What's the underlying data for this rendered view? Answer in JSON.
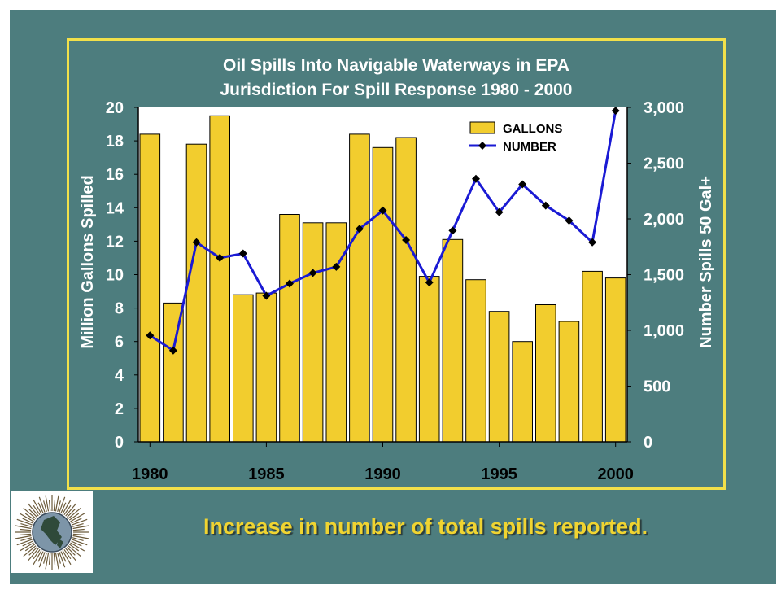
{
  "chart_data": {
    "type": "bar+line",
    "title_line1": "Oil Spills Into Navigable Waterways in EPA",
    "title_line2": "Jurisdiction For Spill Response 1980 - 2000",
    "ylabel_left": "Million Gallons Spilled",
    "ylabel_right": "Number Spills 50 Gal+",
    "x_ticks": [
      "1980",
      "1985",
      "1990",
      "1995",
      "2000"
    ],
    "y_left_ticks": [
      "0",
      "2",
      "4",
      "6",
      "8",
      "10",
      "12",
      "14",
      "16",
      "18",
      "20"
    ],
    "y_right_ticks": [
      "0",
      "500",
      "1,000",
      "1,500",
      "2,000",
      "2,500",
      "3,000"
    ],
    "ylim_left": [
      0,
      20
    ],
    "ylim_right": [
      0,
      3000
    ],
    "legend_position": "top-right",
    "years": [
      1980,
      1981,
      1982,
      1983,
      1984,
      1985,
      1986,
      1987,
      1988,
      1989,
      1990,
      1991,
      1992,
      1993,
      1994,
      1995,
      1996,
      1997,
      1998,
      1999,
      2000
    ],
    "series": [
      {
        "name": "GALLONS",
        "kind": "bar",
        "axis": "left",
        "color": "#f2cd2e",
        "values": [
          18.4,
          8.3,
          17.8,
          19.5,
          8.8,
          8.9,
          13.6,
          13.1,
          13.1,
          18.4,
          17.6,
          18.2,
          9.9,
          12.1,
          9.7,
          7.8,
          6.0,
          8.2,
          7.2,
          10.2,
          9.8
        ]
      },
      {
        "name": "NUMBER",
        "kind": "line",
        "axis": "right",
        "color": "#1a1ad4",
        "values": [
          955,
          820,
          1790,
          1650,
          1690,
          1310,
          1420,
          1515,
          1570,
          1910,
          2075,
          1810,
          1430,
          1895,
          2360,
          2060,
          2310,
          2120,
          1985,
          1790,
          2970
        ]
      }
    ]
  },
  "caption": "Increase in number of total spills reported.",
  "colors": {
    "slide_bg": "#4d7d7e",
    "frame": "#f2e04a",
    "plot_bg": "#ffffff",
    "caption": "#f0d431"
  },
  "logo_icon": "globe-sunburst-icon"
}
